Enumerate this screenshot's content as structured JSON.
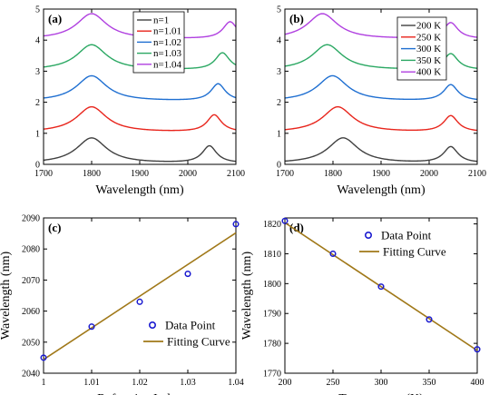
{
  "chart_data": [
    {
      "panel": "(a)",
      "type": "line",
      "xlabel": "Wavelength (nm)",
      "ylabel": "",
      "xlim": [
        1700,
        2100
      ],
      "ylim": [
        0,
        5
      ],
      "xticks": [
        1700,
        1800,
        1900,
        2000,
        2100
      ],
      "yticks": [
        0,
        1,
        2,
        3,
        4,
        5
      ],
      "legend": "top-center",
      "series": [
        {
          "name": "n=1",
          "color": "#404040",
          "offset": 0,
          "peaks": [
            {
              "x": 1800,
              "h": 0.82,
              "w": 38
            },
            {
              "x": 2045,
              "h": 0.55,
              "w": 18
            }
          ]
        },
        {
          "name": "n=1.01",
          "color": "#e8251c",
          "offset": 1,
          "peaks": [
            {
              "x": 1800,
              "h": 0.82,
              "w": 38
            },
            {
              "x": 2055,
              "h": 0.55,
              "w": 18
            }
          ]
        },
        {
          "name": "n=1.02",
          "color": "#1f6fd1",
          "offset": 2,
          "peaks": [
            {
              "x": 1800,
              "h": 0.82,
              "w": 38
            },
            {
              "x": 2063,
              "h": 0.55,
              "w": 18
            }
          ]
        },
        {
          "name": "n=1.03",
          "color": "#2ba863",
          "offset": 3,
          "peaks": [
            {
              "x": 1800,
              "h": 0.82,
              "w": 38
            },
            {
              "x": 2072,
              "h": 0.55,
              "w": 18
            }
          ]
        },
        {
          "name": "n=1.04",
          "color": "#b040e0",
          "offset": 4,
          "peaks": [
            {
              "x": 1800,
              "h": 0.82,
              "w": 38
            },
            {
              "x": 2088,
              "h": 0.55,
              "w": 18
            }
          ]
        }
      ]
    },
    {
      "panel": "(b)",
      "type": "line",
      "xlabel": "Wavelength (nm)",
      "ylabel": "",
      "xlim": [
        1700,
        2100
      ],
      "ylim": [
        0,
        5
      ],
      "xticks": [
        1700,
        1800,
        1900,
        2000,
        2100
      ],
      "yticks": [
        0,
        1,
        2,
        3,
        4,
        5
      ],
      "legend": "top-right",
      "series": [
        {
          "name": "200 K",
          "color": "#404040",
          "offset": 0,
          "peaks": [
            {
              "x": 1821,
              "h": 0.82,
              "w": 38
            },
            {
              "x": 2045,
              "h": 0.52,
              "w": 18
            }
          ]
        },
        {
          "name": "250 K",
          "color": "#e8251c",
          "offset": 1,
          "peaks": [
            {
              "x": 1810,
              "h": 0.82,
              "w": 38
            },
            {
              "x": 2045,
              "h": 0.52,
              "w": 18
            }
          ]
        },
        {
          "name": "300 K",
          "color": "#1f6fd1",
          "offset": 2,
          "peaks": [
            {
              "x": 1799,
              "h": 0.82,
              "w": 38
            },
            {
              "x": 2045,
              "h": 0.52,
              "w": 18
            }
          ]
        },
        {
          "name": "350 K",
          "color": "#2ba863",
          "offset": 3,
          "peaks": [
            {
              "x": 1788,
              "h": 0.82,
              "w": 38
            },
            {
              "x": 2045,
              "h": 0.52,
              "w": 18
            }
          ]
        },
        {
          "name": "400 K",
          "color": "#b040e0",
          "offset": 4,
          "peaks": [
            {
              "x": 1778,
              "h": 0.82,
              "w": 38
            },
            {
              "x": 2045,
              "h": 0.52,
              "w": 18
            }
          ]
        }
      ]
    },
    {
      "panel": "(c)",
      "type": "scatter",
      "xlabel": "Refractive Index",
      "ylabel": "Wavelength (nm)",
      "xlim": [
        1.0,
        1.04
      ],
      "ylim": [
        2040,
        2090
      ],
      "xticks": [
        1,
        1.01,
        1.02,
        1.03,
        1.04
      ],
      "xticklabels": [
        "1",
        "1.01",
        "1.02",
        "1.03",
        "1.04"
      ],
      "yticks": [
        2040,
        2050,
        2060,
        2070,
        2080,
        2090
      ],
      "legend": "bottom-right",
      "points": {
        "name": "Data Point",
        "color": "#1a1ad0",
        "x": [
          1.0,
          1.01,
          1.02,
          1.03,
          1.04
        ],
        "y": [
          2045,
          2055,
          2063,
          2072,
          2088
        ]
      },
      "fit": {
        "name": "Fitting Curve",
        "color": "#a07818",
        "x": [
          1.0,
          1.04
        ],
        "y": [
          2044.4,
          2085.2
        ]
      }
    },
    {
      "panel": "(d)",
      "type": "scatter",
      "xlabel": "Temperature (K)",
      "ylabel": "Wavelength (nm)",
      "xlim": [
        200,
        400
      ],
      "ylim": [
        1770,
        1822
      ],
      "xticks": [
        200,
        250,
        300,
        350,
        400
      ],
      "xticklabels": [
        "200",
        "250",
        "300",
        "350",
        "400"
      ],
      "yticks": [
        1770,
        1780,
        1790,
        1800,
        1810,
        1820
      ],
      "legend": "top-right",
      "points": {
        "name": "Data Point",
        "color": "#1a1ad0",
        "x": [
          200,
          250,
          300,
          350,
          400
        ],
        "y": [
          1821,
          1810,
          1799,
          1788,
          1778
        ]
      },
      "fit": {
        "name": "Fitting Curve",
        "color": "#a07818",
        "x": [
          200,
          400
        ],
        "y": [
          1820.4,
          1777.6
        ]
      }
    }
  ]
}
